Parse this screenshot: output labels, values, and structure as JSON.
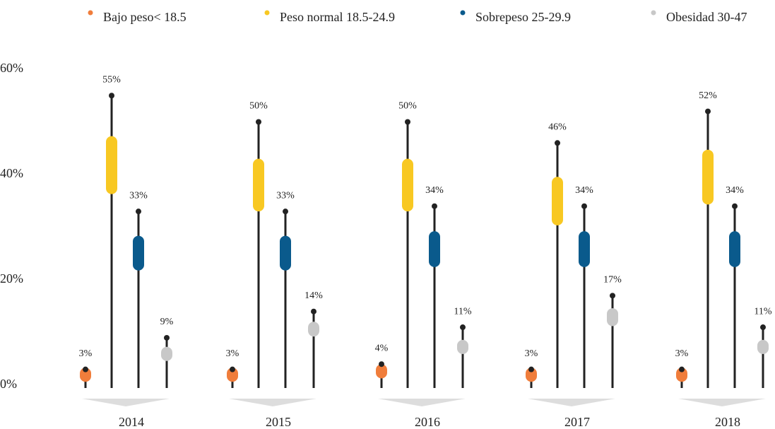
{
  "chart_data": {
    "type": "lollipop",
    "categories": [
      "2014",
      "2015",
      "2016",
      "2017",
      "2018"
    ],
    "series": [
      {
        "name": "Bajo peso< 18.5",
        "color": "#f07d3b",
        "values": [
          3,
          3,
          4,
          3,
          3
        ],
        "value_labels": [
          "3%",
          "3%",
          "4%",
          "3%",
          "3%"
        ]
      },
      {
        "name": "Peso normal 18.5-24.9",
        "color": "#f8c822",
        "values": [
          55,
          50,
          50,
          46,
          52
        ],
        "value_labels": [
          "55%",
          "50%",
          "50%",
          "46%",
          "52%"
        ]
      },
      {
        "name": "Sobrepeso 25-29.9",
        "color": "#0a5a8c",
        "values": [
          33,
          33,
          34,
          34,
          34
        ],
        "value_labels": [
          "33%",
          "33%",
          "34%",
          "34%",
          "34%"
        ]
      },
      {
        "name": "Obesidad 30-47",
        "color": "#c8c8c8",
        "values": [
          9,
          14,
          11,
          17,
          11
        ],
        "value_labels": [
          "9%",
          "14%",
          "11%",
          "17%",
          "11%"
        ]
      }
    ],
    "ylim": [
      0,
      60
    ],
    "yticks": [
      {
        "value": 0,
        "label": "0%"
      },
      {
        "value": 20,
        "label": "20%"
      },
      {
        "value": 40,
        "label": "40%"
      },
      {
        "value": 60,
        "label": "60%"
      }
    ]
  }
}
